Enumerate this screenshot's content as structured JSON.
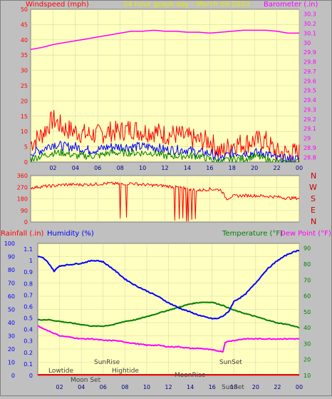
{
  "header": {
    "left_label": "Windspeed (mph)",
    "title": "24 hour graph day : March 09 2020",
    "right_label": "Barometer (.in)"
  },
  "direction_labels": [
    "N",
    "W",
    "S",
    "E",
    "N"
  ],
  "lower_header": {
    "rainfall": "Rainfall (.in)",
    "humidity": "Humidity (%)",
    "temperature": "Temperature (°F)",
    "dew_point": "Dew Point (°F)"
  },
  "events": {
    "lowtide": "Lowtide",
    "moon_set": "Moon Set",
    "sunrise": "SunRise",
    "hightide": "Hightide",
    "moonrise": "MoonRise",
    "sunset": "SunSet",
    "sunset_bottom": "SunSet"
  },
  "colors": {
    "background": "#c0c0c0",
    "plot_bg": "#ffffc0",
    "grid": "#d8d8a8",
    "red": "#ff0000",
    "blue": "#0000ff",
    "green": "#008000",
    "magenta": "#ff00ff",
    "yellow_title": "#e8e800",
    "dark_red": "#cc0000"
  },
  "chart_data": [
    {
      "type": "line",
      "name": "wind_barometer",
      "x_ticks": [
        "02",
        "04",
        "06",
        "08",
        "10",
        "12",
        "14",
        "16",
        "18",
        "20",
        "22",
        "00"
      ],
      "y_left_ticks": [
        "0",
        "5",
        "10",
        "15",
        "20",
        "25",
        "30",
        "35",
        "40",
        "45",
        "50"
      ],
      "ylim_left": [
        0,
        50
      ],
      "y_right_ticks": [
        "28.8",
        "28.9",
        "29",
        "29.1",
        "29.2",
        "29.3",
        "29.4",
        "29.5",
        "29.6",
        "29.7",
        "29.8",
        "29.9",
        "30",
        "30.1",
        "30.2",
        "30.3"
      ],
      "ylim_right": [
        28.75,
        30.35
      ],
      "barometer": {
        "x": [
          0,
          1,
          2,
          3,
          4,
          5,
          6,
          7,
          8,
          9,
          10,
          11,
          12,
          13,
          14,
          15,
          16,
          17,
          18,
          19,
          20,
          21,
          22,
          23,
          24
        ],
        "y": [
          29.93,
          29.95,
          29.98,
          30.0,
          30.02,
          30.04,
          30.06,
          30.08,
          30.1,
          30.12,
          30.12,
          30.13,
          30.12,
          30.12,
          30.11,
          30.11,
          30.1,
          30.11,
          30.12,
          30.13,
          30.13,
          30.13,
          30.12,
          30.1,
          30.1
        ]
      },
      "wind_gust_max": {
        "x": [
          0,
          1,
          2,
          3,
          4,
          5,
          6,
          7,
          8,
          9,
          10,
          11,
          12,
          13,
          14,
          15,
          16,
          17,
          18,
          19,
          20,
          21,
          22,
          23,
          24
        ],
        "y": [
          6,
          9,
          14,
          11,
          10,
          9,
          9,
          10,
          10,
          11,
          10,
          10,
          9,
          9,
          8,
          7,
          7,
          3,
          6,
          6,
          7,
          7,
          3,
          3,
          3
        ]
      },
      "wind_avg": {
        "x": [
          0,
          1,
          2,
          3,
          4,
          5,
          6,
          7,
          8,
          9,
          10,
          11,
          12,
          13,
          14,
          15,
          16,
          17,
          18,
          19,
          20,
          21,
          22,
          23,
          24
        ],
        "y": [
          3,
          4,
          6,
          5,
          5,
          4,
          4,
          5,
          5,
          5,
          5,
          5,
          4,
          4,
          4,
          3,
          3,
          1,
          3,
          3,
          3,
          3,
          1,
          1,
          1
        ]
      },
      "wind_low": {
        "x": [
          0,
          1,
          2,
          3,
          4,
          5,
          6,
          7,
          8,
          9,
          10,
          11,
          12,
          13,
          14,
          15,
          16,
          17,
          18,
          19,
          20,
          21,
          22,
          23,
          24
        ],
        "y": [
          1,
          2,
          3,
          3,
          2,
          2,
          2,
          3,
          3,
          3,
          3,
          3,
          2,
          2,
          2,
          2,
          1,
          0,
          1,
          1,
          2,
          1,
          0,
          0,
          0
        ]
      }
    },
    {
      "type": "line",
      "name": "wind_direction",
      "y_ticks": [
        "0",
        "90",
        "180",
        "270",
        "360"
      ],
      "ylim": [
        0,
        360
      ],
      "x": [
        0,
        1,
        2,
        3,
        4,
        5,
        6,
        7,
        8,
        9,
        10,
        11,
        12,
        13,
        14,
        15,
        16,
        17,
        17.5,
        18,
        19,
        20,
        21,
        22,
        23,
        24
      ],
      "y": [
        265,
        275,
        280,
        290,
        290,
        290,
        295,
        300,
        295,
        300,
        290,
        285,
        280,
        270,
        260,
        245,
        255,
        250,
        180,
        200,
        205,
        205,
        200,
        195,
        185,
        185
      ]
    },
    {
      "type": "line",
      "name": "humidity_temperature",
      "x_ticks": [
        "02",
        "04",
        "06",
        "08",
        "10",
        "12",
        "14",
        "16",
        "18",
        "20",
        "22",
        "00"
      ],
      "rain_ticks": [
        "0",
        "0.1",
        "0.2",
        "0.3",
        "0.4",
        "0.5",
        "0.6",
        "0.7",
        "0.8",
        "0.9",
        "1",
        "1.1"
      ],
      "humidity_ticks": [
        "0",
        "10",
        "20",
        "30",
        "40",
        "50",
        "60",
        "70",
        "80",
        "90",
        "100"
      ],
      "temp_ticks": [
        "10",
        "20",
        "30",
        "40",
        "50",
        "60",
        "70",
        "80",
        "90"
      ],
      "ylim_humidity": [
        0,
        100
      ],
      "ylim_temperature": [
        10,
        93
      ],
      "humidity": {
        "x": [
          0,
          0.5,
          1,
          1.5,
          2,
          3,
          4,
          5,
          5.5,
          6,
          7,
          8,
          9,
          10,
          11,
          12,
          13,
          14,
          15,
          16,
          16.5,
          17,
          17.5,
          18,
          19,
          20,
          21,
          22,
          23,
          24
        ],
        "y": [
          90,
          89,
          85,
          79,
          83,
          84,
          85,
          87,
          87,
          86,
          80,
          73,
          68,
          64,
          60,
          55,
          51,
          48,
          45,
          43,
          43,
          45,
          48,
          56,
          61,
          70,
          80,
          87,
          92,
          95
        ]
      },
      "temperature": {
        "x": [
          0,
          1,
          2,
          3,
          4,
          5,
          6,
          7,
          8,
          9,
          10,
          11,
          12,
          13,
          14,
          15,
          16,
          17,
          18,
          19,
          20,
          21,
          22,
          23,
          24
        ],
        "y": [
          45,
          45,
          44,
          43,
          42,
          41,
          41,
          42,
          44,
          45,
          47,
          49,
          51,
          53,
          55,
          56,
          56,
          54,
          51,
          49,
          47,
          45,
          43,
          42,
          40
        ]
      },
      "dew_point": {
        "x": [
          0,
          1,
          2,
          3,
          4,
          5,
          6,
          7,
          8,
          9,
          10,
          11,
          12,
          13,
          14,
          15,
          16,
          17,
          17.2,
          18,
          19,
          20,
          21,
          22,
          23,
          24
        ],
        "y": [
          41,
          38,
          35,
          34,
          33,
          33,
          32,
          32,
          31,
          30,
          29,
          29,
          28,
          28,
          27,
          27,
          26,
          25,
          31,
          32,
          33,
          33,
          33,
          33,
          33,
          33
        ]
      },
      "rainfall": {
        "x": [
          0,
          24
        ],
        "y": [
          0,
          0
        ]
      }
    }
  ]
}
